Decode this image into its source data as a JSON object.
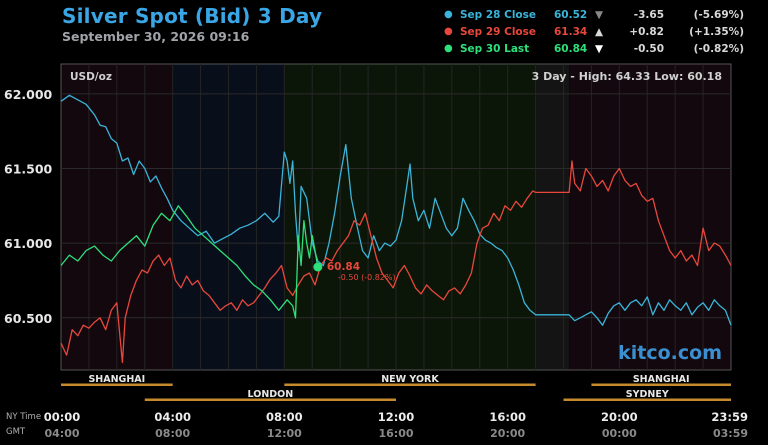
{
  "header": {
    "title": "Silver Spot (Bid) 3 Day",
    "subtitle": "September 30, 2026 09:16"
  },
  "legend": [
    {
      "name": "Sep 28 Close",
      "value": "60.52",
      "arrow": "▼",
      "change": "-3.65",
      "pct": "(-5.69%)",
      "color": "#3ab4d8",
      "arrow_color": "#888888"
    },
    {
      "name": "Sep 29 Close",
      "value": "61.34",
      "arrow": "▲",
      "change": "+0.82",
      "pct": "(+1.35%)",
      "color": "#e8473c",
      "arrow_color": "#d8d8d8"
    },
    {
      "name": "Sep 30 Last",
      "value": "60.84",
      "arrow": "▼",
      "change": "-0.50",
      "pct": "(-0.82%)",
      "color": "#2ee07a",
      "arrow_color": "#ffffff"
    }
  ],
  "chart_data": {
    "type": "line",
    "unit_label": "USD/oz",
    "range_label": "3 Day - High: 64.33  Low: 60.18",
    "ylim": [
      60.15,
      62.2
    ],
    "y_ticks": [
      "62.000",
      "61.500",
      "61.000",
      "60.500"
    ],
    "xlim": [
      0,
      24
    ],
    "x_ticks_ny": [
      "00:00",
      "04:00",
      "08:00",
      "12:00",
      "16:00",
      "20:00",
      "23:59"
    ],
    "x_ticks_gmt": [
      "04:00",
      "08:00",
      "12:00",
      "16:00",
      "20:00",
      "00:00",
      "03:59"
    ],
    "x_axis_labels": {
      "ny": "NY Time",
      "gmt": "GMT"
    },
    "watermark": "kitco.com",
    "sessions": {
      "row1": [
        {
          "name": "SHANGHAI",
          "start": 0,
          "end": 4
        },
        {
          "name": "NEW YORK",
          "start": 8,
          "end": 17
        },
        {
          "name": "SHANGHAI",
          "start": 19,
          "end": 24
        }
      ],
      "row2": [
        {
          "name": "LONDON",
          "start": 3,
          "end": 12
        },
        {
          "name": "SYDNEY",
          "start": 18,
          "end": 24
        }
      ]
    },
    "last_point": {
      "x": 9.2,
      "y": 60.84,
      "label": "60.84",
      "change_label": "-0.50 (-0.82%)"
    },
    "series": [
      {
        "name": "Sep 28 Close",
        "color": "#3ab4d8",
        "points": [
          [
            0,
            61.95
          ],
          [
            0.3,
            61.99
          ],
          [
            0.6,
            61.96
          ],
          [
            0.9,
            61.93
          ],
          [
            1.2,
            61.86
          ],
          [
            1.4,
            61.79
          ],
          [
            1.6,
            61.78
          ],
          [
            1.8,
            61.7
          ],
          [
            2,
            61.67
          ],
          [
            2.2,
            61.55
          ],
          [
            2.4,
            61.57
          ],
          [
            2.6,
            61.46
          ],
          [
            2.8,
            61.55
          ],
          [
            3,
            61.5
          ],
          [
            3.2,
            61.41
          ],
          [
            3.4,
            61.45
          ],
          [
            3.6,
            61.37
          ],
          [
            3.8,
            61.3
          ],
          [
            4,
            61.22
          ],
          [
            4.3,
            61.15
          ],
          [
            4.6,
            61.1
          ],
          [
            4.9,
            61.05
          ],
          [
            5.2,
            61.08
          ],
          [
            5.5,
            61.0
          ],
          [
            5.8,
            61.03
          ],
          [
            6.1,
            61.06
          ],
          [
            6.4,
            61.1
          ],
          [
            6.7,
            61.12
          ],
          [
            7,
            61.15
          ],
          [
            7.3,
            61.2
          ],
          [
            7.6,
            61.14
          ],
          [
            7.8,
            61.18
          ],
          [
            8,
            61.61
          ],
          [
            8.1,
            61.55
          ],
          [
            8.2,
            61.4
          ],
          [
            8.3,
            61.55
          ],
          [
            8.4,
            61.2
          ],
          [
            8.5,
            60.95
          ],
          [
            8.6,
            61.38
          ],
          [
            8.8,
            61.3
          ],
          [
            9,
            61.0
          ],
          [
            9.2,
            60.88
          ],
          [
            9.4,
            60.85
          ],
          [
            9.6,
            61.0
          ],
          [
            9.8,
            61.2
          ],
          [
            10,
            61.45
          ],
          [
            10.2,
            61.66
          ],
          [
            10.4,
            61.3
          ],
          [
            10.6,
            61.12
          ],
          [
            10.8,
            60.95
          ],
          [
            11,
            60.9
          ],
          [
            11.2,
            61.05
          ],
          [
            11.4,
            60.95
          ],
          [
            11.6,
            61.0
          ],
          [
            11.8,
            60.98
          ],
          [
            12,
            61.02
          ],
          [
            12.2,
            61.15
          ],
          [
            12.4,
            61.4
          ],
          [
            12.5,
            61.53
          ],
          [
            12.6,
            61.3
          ],
          [
            12.8,
            61.15
          ],
          [
            13,
            61.22
          ],
          [
            13.2,
            61.1
          ],
          [
            13.4,
            61.3
          ],
          [
            13.6,
            61.2
          ],
          [
            13.8,
            61.1
          ],
          [
            14,
            61.05
          ],
          [
            14.2,
            61.1
          ],
          [
            14.4,
            61.3
          ],
          [
            14.6,
            61.22
          ],
          [
            14.8,
            61.15
          ],
          [
            15,
            61.06
          ],
          [
            15.2,
            61.02
          ],
          [
            15.4,
            61.0
          ],
          [
            15.6,
            60.97
          ],
          [
            15.8,
            60.95
          ],
          [
            16,
            60.9
          ],
          [
            16.2,
            60.82
          ],
          [
            16.4,
            60.72
          ],
          [
            16.6,
            60.6
          ],
          [
            16.8,
            60.55
          ],
          [
            17,
            60.52
          ],
          [
            18.2,
            60.52
          ],
          [
            18.4,
            60.48
          ],
          [
            18.6,
            60.5
          ],
          [
            18.8,
            60.52
          ],
          [
            19,
            60.54
          ],
          [
            19.2,
            60.5
          ],
          [
            19.4,
            60.45
          ],
          [
            19.6,
            60.53
          ],
          [
            19.8,
            60.58
          ],
          [
            20,
            60.6
          ],
          [
            20.2,
            60.55
          ],
          [
            20.4,
            60.6
          ],
          [
            20.6,
            60.62
          ],
          [
            20.8,
            60.58
          ],
          [
            21,
            60.64
          ],
          [
            21.2,
            60.52
          ],
          [
            21.4,
            60.6
          ],
          [
            21.6,
            60.55
          ],
          [
            21.8,
            60.62
          ],
          [
            22,
            60.58
          ],
          [
            22.2,
            60.55
          ],
          [
            22.4,
            60.6
          ],
          [
            22.6,
            60.52
          ],
          [
            22.8,
            60.57
          ],
          [
            23,
            60.6
          ],
          [
            23.2,
            60.55
          ],
          [
            23.4,
            60.62
          ],
          [
            23.6,
            60.58
          ],
          [
            23.8,
            60.55
          ],
          [
            24,
            60.45
          ]
        ]
      },
      {
        "name": "Sep 29 Close",
        "color": "#e8473c",
        "points": [
          [
            0,
            60.33
          ],
          [
            0.2,
            60.25
          ],
          [
            0.4,
            60.42
          ],
          [
            0.6,
            60.38
          ],
          [
            0.8,
            60.45
          ],
          [
            1,
            60.43
          ],
          [
            1.2,
            60.47
          ],
          [
            1.4,
            60.5
          ],
          [
            1.6,
            60.42
          ],
          [
            1.8,
            60.55
          ],
          [
            2,
            60.6
          ],
          [
            2.2,
            60.2
          ],
          [
            2.3,
            60.5
          ],
          [
            2.5,
            60.65
          ],
          [
            2.7,
            60.75
          ],
          [
            2.9,
            60.82
          ],
          [
            3.1,
            60.8
          ],
          [
            3.3,
            60.88
          ],
          [
            3.5,
            60.92
          ],
          [
            3.7,
            60.85
          ],
          [
            3.9,
            60.9
          ],
          [
            4.1,
            60.75
          ],
          [
            4.3,
            60.7
          ],
          [
            4.5,
            60.78
          ],
          [
            4.7,
            60.72
          ],
          [
            4.9,
            60.75
          ],
          [
            5.1,
            60.68
          ],
          [
            5.3,
            60.65
          ],
          [
            5.5,
            60.6
          ],
          [
            5.7,
            60.55
          ],
          [
            5.9,
            60.58
          ],
          [
            6.1,
            60.6
          ],
          [
            6.3,
            60.55
          ],
          [
            6.5,
            60.62
          ],
          [
            6.7,
            60.58
          ],
          [
            6.9,
            60.6
          ],
          [
            7.1,
            60.65
          ],
          [
            7.3,
            60.7
          ],
          [
            7.5,
            60.76
          ],
          [
            7.7,
            60.8
          ],
          [
            7.9,
            60.85
          ],
          [
            8.1,
            60.7
          ],
          [
            8.3,
            60.65
          ],
          [
            8.5,
            60.72
          ],
          [
            8.7,
            60.78
          ],
          [
            8.9,
            60.8
          ],
          [
            9.1,
            60.72
          ],
          [
            9.3,
            60.85
          ],
          [
            9.5,
            60.9
          ],
          [
            9.7,
            60.88
          ],
          [
            9.9,
            60.95
          ],
          [
            10.1,
            61.0
          ],
          [
            10.3,
            61.05
          ],
          [
            10.5,
            61.15
          ],
          [
            10.7,
            61.12
          ],
          [
            10.9,
            61.2
          ],
          [
            11.1,
            61.05
          ],
          [
            11.3,
            60.9
          ],
          [
            11.5,
            60.8
          ],
          [
            11.7,
            60.75
          ],
          [
            11.9,
            60.7
          ],
          [
            12.1,
            60.8
          ],
          [
            12.3,
            60.85
          ],
          [
            12.5,
            60.78
          ],
          [
            12.7,
            60.7
          ],
          [
            12.9,
            60.66
          ],
          [
            13.1,
            60.72
          ],
          [
            13.3,
            60.68
          ],
          [
            13.5,
            60.65
          ],
          [
            13.7,
            60.62
          ],
          [
            13.9,
            60.68
          ],
          [
            14.1,
            60.7
          ],
          [
            14.3,
            60.66
          ],
          [
            14.5,
            60.72
          ],
          [
            14.7,
            60.8
          ],
          [
            14.9,
            61.0
          ],
          [
            15.1,
            61.1
          ],
          [
            15.3,
            61.12
          ],
          [
            15.5,
            61.2
          ],
          [
            15.7,
            61.15
          ],
          [
            15.9,
            61.25
          ],
          [
            16.1,
            61.22
          ],
          [
            16.3,
            61.28
          ],
          [
            16.5,
            61.24
          ],
          [
            16.7,
            61.3
          ],
          [
            16.9,
            61.35
          ],
          [
            17,
            61.34
          ],
          [
            18.2,
            61.34
          ],
          [
            18.3,
            61.55
          ],
          [
            18.4,
            61.4
          ],
          [
            18.6,
            61.35
          ],
          [
            18.8,
            61.5
          ],
          [
            19,
            61.45
          ],
          [
            19.2,
            61.38
          ],
          [
            19.4,
            61.42
          ],
          [
            19.6,
            61.35
          ],
          [
            19.8,
            61.45
          ],
          [
            20,
            61.5
          ],
          [
            20.2,
            61.42
          ],
          [
            20.4,
            61.38
          ],
          [
            20.6,
            61.4
          ],
          [
            20.8,
            61.32
          ],
          [
            21,
            61.28
          ],
          [
            21.2,
            61.3
          ],
          [
            21.4,
            61.15
          ],
          [
            21.6,
            61.05
          ],
          [
            21.8,
            60.95
          ],
          [
            22,
            60.9
          ],
          [
            22.2,
            60.95
          ],
          [
            22.4,
            60.88
          ],
          [
            22.6,
            60.92
          ],
          [
            22.8,
            60.85
          ],
          [
            23,
            61.1
          ],
          [
            23.2,
            60.95
          ],
          [
            23.4,
            61.0
          ],
          [
            23.6,
            60.98
          ],
          [
            23.8,
            60.92
          ],
          [
            24,
            60.85
          ]
        ]
      },
      {
        "name": "Sep 30 Last",
        "color": "#2ee07a",
        "points": [
          [
            0,
            60.85
          ],
          [
            0.3,
            60.92
          ],
          [
            0.6,
            60.88
          ],
          [
            0.9,
            60.95
          ],
          [
            1.2,
            60.98
          ],
          [
            1.5,
            60.92
          ],
          [
            1.8,
            60.88
          ],
          [
            2.1,
            60.95
          ],
          [
            2.4,
            61.0
          ],
          [
            2.7,
            61.05
          ],
          [
            3,
            60.98
          ],
          [
            3.3,
            61.12
          ],
          [
            3.6,
            61.2
          ],
          [
            3.9,
            61.15
          ],
          [
            4.2,
            61.25
          ],
          [
            4.5,
            61.18
          ],
          [
            4.8,
            61.1
          ],
          [
            5.1,
            61.05
          ],
          [
            5.4,
            61.0
          ],
          [
            5.7,
            60.95
          ],
          [
            6,
            60.9
          ],
          [
            6.3,
            60.85
          ],
          [
            6.6,
            60.78
          ],
          [
            6.9,
            60.72
          ],
          [
            7.2,
            60.68
          ],
          [
            7.5,
            60.62
          ],
          [
            7.8,
            60.55
          ],
          [
            8.1,
            60.62
          ],
          [
            8.3,
            60.58
          ],
          [
            8.4,
            60.5
          ],
          [
            8.5,
            61.05
          ],
          [
            8.6,
            60.85
          ],
          [
            8.7,
            61.15
          ],
          [
            8.8,
            61.0
          ],
          [
            8.9,
            60.9
          ],
          [
            9,
            61.05
          ],
          [
            9.1,
            60.95
          ],
          [
            9.2,
            60.84
          ]
        ]
      }
    ]
  }
}
